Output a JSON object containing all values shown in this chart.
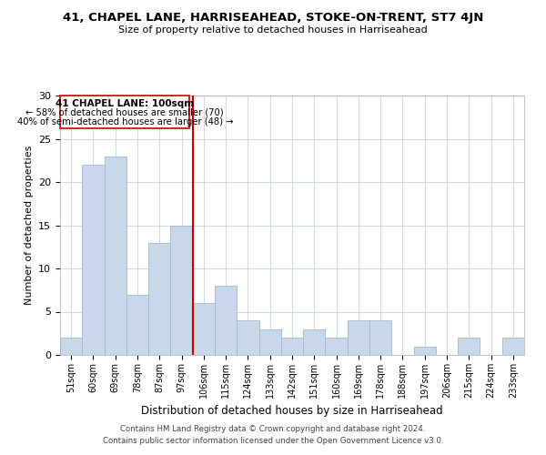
{
  "title1": "41, CHAPEL LANE, HARRISEAHEAD, STOKE-ON-TRENT, ST7 4JN",
  "title2": "Size of property relative to detached houses in Harriseahead",
  "xlabel": "Distribution of detached houses by size in Harriseahead",
  "ylabel": "Number of detached properties",
  "bin_labels": [
    "51sqm",
    "60sqm",
    "69sqm",
    "78sqm",
    "87sqm",
    "97sqm",
    "106sqm",
    "115sqm",
    "124sqm",
    "133sqm",
    "142sqm",
    "151sqm",
    "160sqm",
    "169sqm",
    "178sqm",
    "188sqm",
    "197sqm",
    "206sqm",
    "215sqm",
    "224sqm",
    "233sqm"
  ],
  "bar_values": [
    2,
    22,
    23,
    7,
    13,
    15,
    6,
    8,
    4,
    3,
    2,
    3,
    2,
    4,
    4,
    0,
    1,
    0,
    2,
    0,
    2
  ],
  "bar_color": "#c8d8ea",
  "bar_edge_color": "#a0b8cc",
  "vline_x": 5.5,
  "vline_color": "#cc0000",
  "ylim": [
    0,
    30
  ],
  "annotation_title": "41 CHAPEL LANE: 100sqm",
  "annotation_line1": "← 58% of detached houses are smaller (70)",
  "annotation_line2": "40% of semi-detached houses are larger (48) →",
  "annotation_box_color": "#ffffff",
  "annotation_box_edge": "#cc0000",
  "footer1": "Contains HM Land Registry data © Crown copyright and database right 2024.",
  "footer2": "Contains public sector information licensed under the Open Government Licence v3.0."
}
